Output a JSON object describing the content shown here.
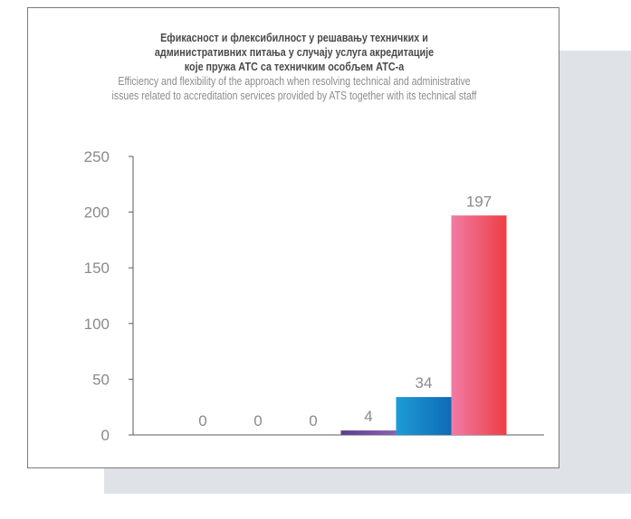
{
  "chart_data": {
    "type": "bar",
    "title": "Ефикасност и флексибилност у решавању техничких и административних питања у случају услуга акредитације које пружа АТС са техничким особљем АТС-а",
    "title_lines": [
      "Ефикасност и флексибилност у решавању техничких и",
      "административних питања у случају услуга акредитације",
      "које пружа АТС са техничким особљем АТС-а"
    ],
    "subtitle": "Efficiency and flexibility of the approach when resolving technical and administrative issues related to accreditation services provided by ATS together with its technical staff",
    "subtitle_lines": [
      "Efficiency and flexibility of the approach when resolving technical and administrative",
      "issues related to accreditation services provided by ATS together with its technical staff"
    ],
    "categories": [
      "",
      "",
      "",
      "",
      "",
      ""
    ],
    "values": [
      0,
      0,
      0,
      4,
      34,
      197
    ],
    "data_labels": [
      "0",
      "0",
      "0",
      "4",
      "34",
      "197"
    ],
    "ylim": [
      0,
      250
    ],
    "yticks": [
      0,
      50,
      100,
      150,
      200,
      250
    ],
    "ytick_labels": [
      "0",
      "50",
      "100",
      "150",
      "200",
      "250"
    ],
    "xlabel": "",
    "ylabel": "",
    "grid": false,
    "legend": "none",
    "bar_colors": [
      [
        "#e9a23b",
        "#f3c542"
      ],
      [
        "#bfd730",
        "#7ab648"
      ],
      [
        "#2ea36b",
        "#1f8a5a"
      ],
      [
        "#5b3f8f",
        "#8a5fb5"
      ],
      [
        "#1e9bd7",
        "#0f6bb5"
      ],
      [
        "#f07ba6",
        "#ee3e42"
      ]
    ],
    "axis_color": "#5a5a5a"
  }
}
